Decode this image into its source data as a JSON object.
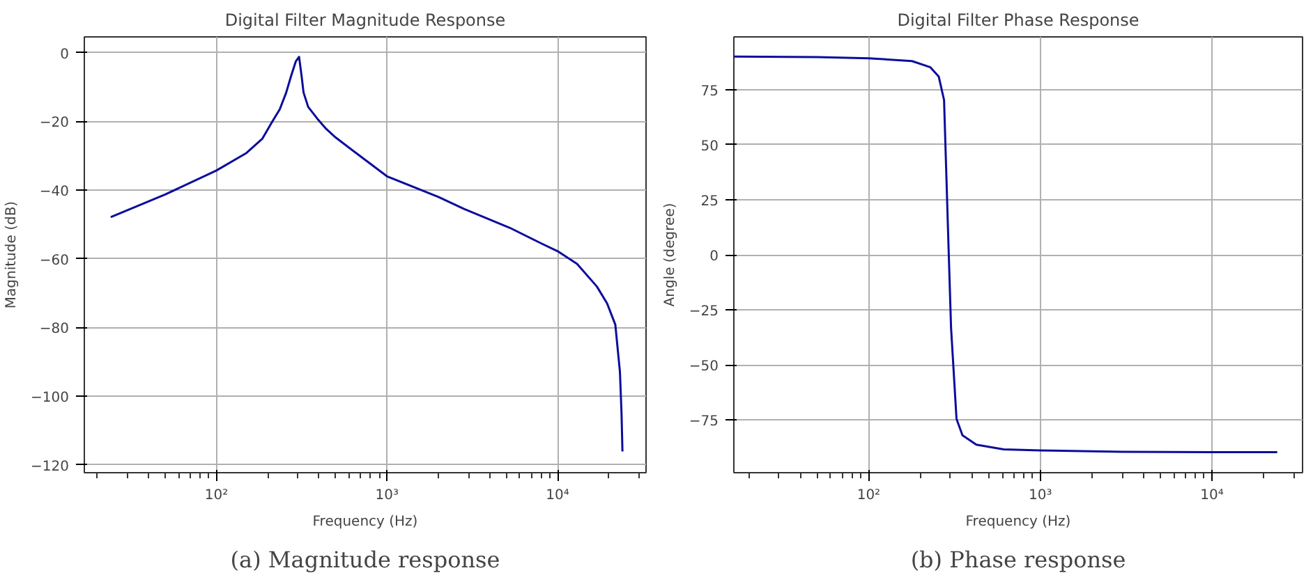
{
  "chart_data": [
    {
      "type": "line",
      "title": "Digital Filter Magnitude Response",
      "xlabel": "Frequency (Hz)",
      "ylabel": "Magnitude (dB)",
      "log": "x",
      "grid": true,
      "marker": "none",
      "line_style": "solid",
      "xlim": [
        16.8,
        33000
      ],
      "ylim": [
        -122.3,
        4.6
      ],
      "xticks": [
        {
          "value": 100,
          "label": "10²"
        },
        {
          "value": 1000,
          "label": "10³"
        },
        {
          "value": 10000,
          "label": "10⁴"
        }
      ],
      "yticks": [
        0,
        -20,
        -40,
        -60,
        -80,
        -100,
        -120
      ],
      "series": [
        {
          "color": "#0c0c9c",
          "x": [
            24,
            50,
            100,
            150,
            186,
            210,
            235,
            256,
            275,
            292,
            305,
            315,
            324,
            345,
            390,
            440,
            500,
            650,
            1000,
            2000,
            2830,
            5250,
            8000,
            10000,
            13000,
            17000,
            19500,
            21800,
            23200,
            23700,
            24000
          ],
          "values": [
            -47.9,
            -41.3,
            -34.3,
            -29.2,
            -25.0,
            -20.5,
            -16.5,
            -11.7,
            -6.5,
            -2.5,
            -1.2,
            -6.5,
            -11.6,
            -15.8,
            -19.2,
            -22.2,
            -24.7,
            -29.0,
            -36.0,
            -42.0,
            -45.5,
            -51.0,
            -55.5,
            -57.8,
            -61.5,
            -68.1,
            -73.0,
            -79.2,
            -93.0,
            -105.0,
            -116.1
          ]
        }
      ],
      "annotations": [
        "(a) Magnitude response"
      ]
    },
    {
      "type": "line",
      "title": "Digital Filter Phase Response",
      "xlabel": "Frequency (Hz)",
      "ylabel": "Angle (degree)",
      "log": "x",
      "grid": true,
      "marker": "none",
      "line_style": "solid",
      "xlim": [
        16.4,
        33700
      ],
      "ylim": [
        -99,
        99
      ],
      "xticks": [
        {
          "value": 100,
          "label": "10²"
        },
        {
          "value": 1000,
          "label": "10³"
        },
        {
          "value": 10000,
          "label": "10⁴"
        }
      ],
      "yticks": [
        75,
        50,
        25,
        0,
        -25,
        -50,
        -75
      ],
      "series": [
        {
          "color": "#0c0c9c",
          "x": [
            16.4,
            50,
            100,
            179,
            229,
            256,
            275,
            293,
            302,
            325,
            352,
            424,
            612,
            1000,
            3000,
            10000,
            24000
          ],
          "values": [
            90.1,
            89.8,
            89.3,
            88.0,
            85.2,
            81.0,
            70.3,
            0,
            -33,
            -74.6,
            -82.0,
            -86.3,
            -88.4,
            -88.9,
            -89.5,
            -89.7,
            -89.7
          ]
        }
      ],
      "annotations": [
        "(b) Phase response"
      ]
    }
  ]
}
